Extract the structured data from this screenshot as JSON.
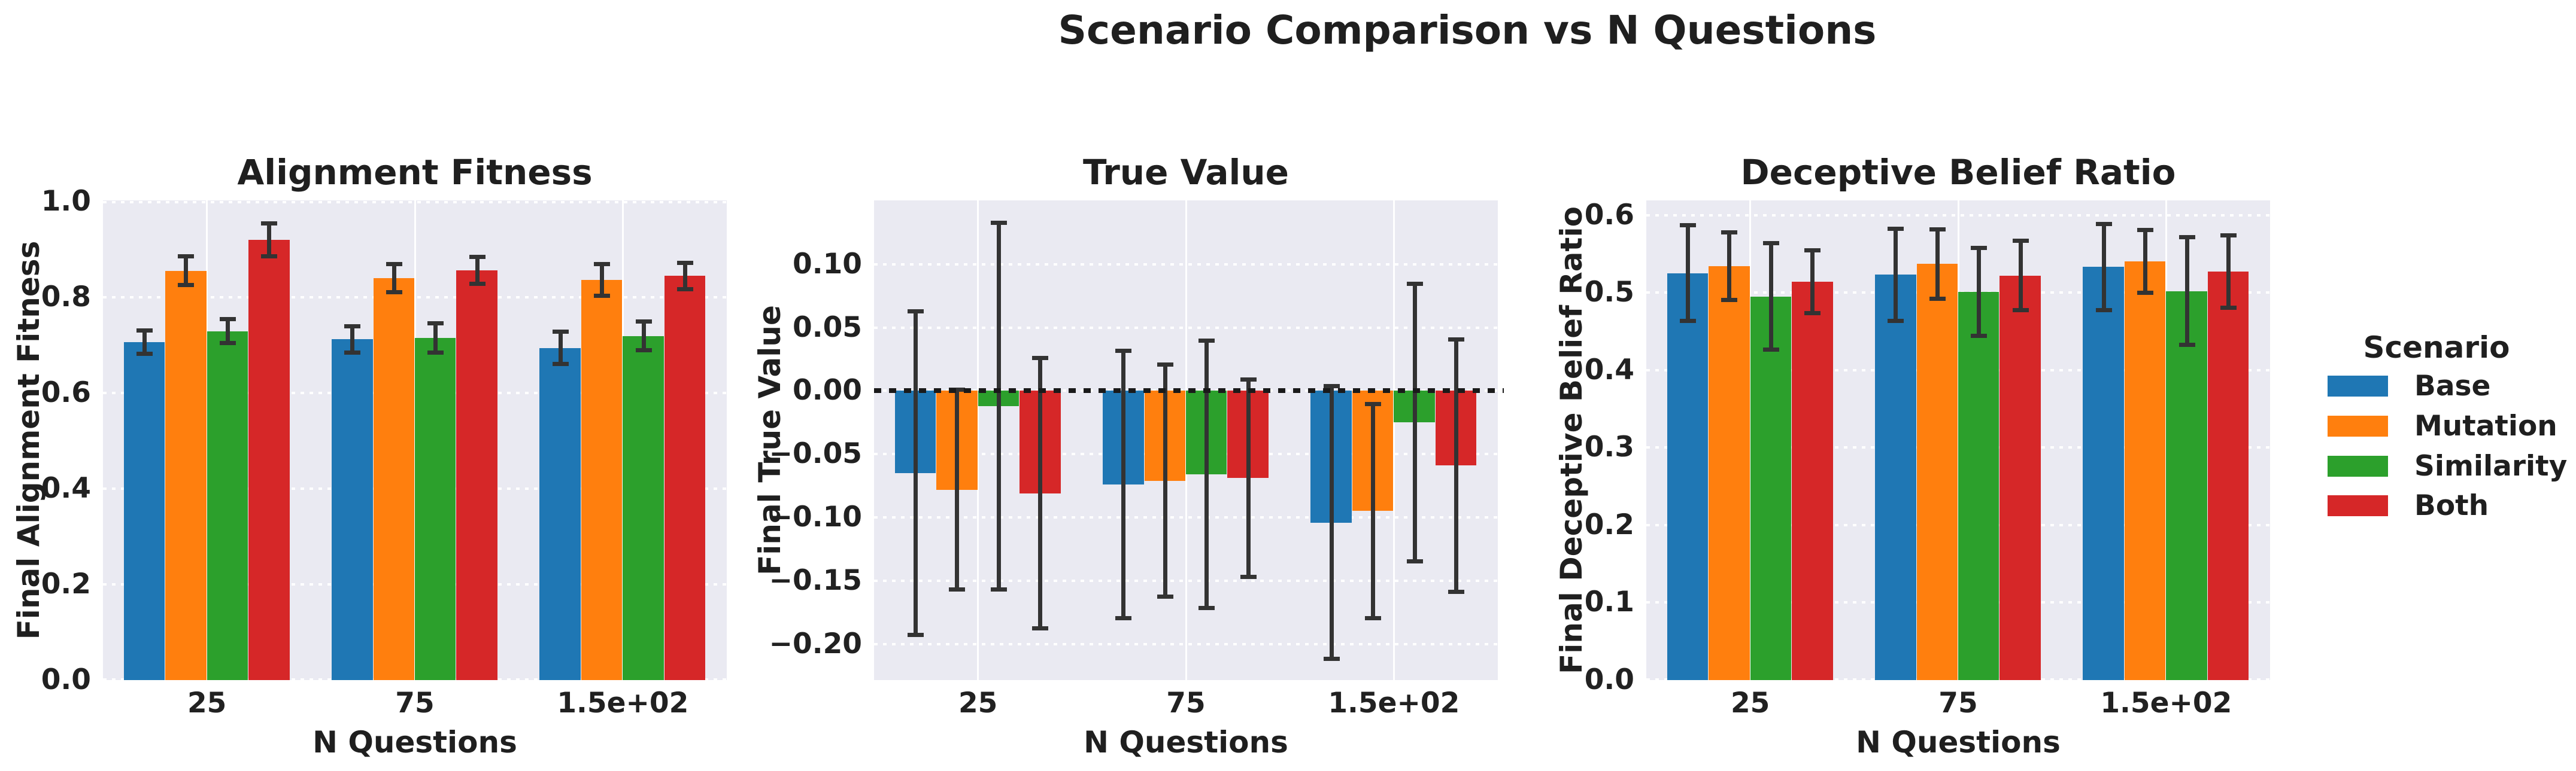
{
  "figure": {
    "suptitle": "Scenario Comparison vs N Questions",
    "background": "#ffffff",
    "panel_background": "#eaeaf2",
    "text_color": "#212121",
    "grid_color": "#ffffff",
    "error_bar_color": "#333333"
  },
  "legend": {
    "title": "Scenario",
    "items": [
      {
        "label": "Base",
        "color": "#1f77b4"
      },
      {
        "label": "Mutation",
        "color": "#ff7f0e"
      },
      {
        "label": "Similarity",
        "color": "#2ca02c"
      },
      {
        "label": "Both",
        "color": "#d62728"
      }
    ]
  },
  "chart_data": [
    {
      "type": "bar",
      "title": "Alignment Fitness",
      "xlabel": "N Questions",
      "ylabel": "Final Alignment Fitness",
      "categories": [
        "25",
        "75",
        "1.5e+02"
      ],
      "ylim": [
        0,
        1.002
      ],
      "yticks": [
        0.0,
        0.2,
        0.4,
        0.6,
        0.8,
        1.0
      ],
      "ytick_labels": [
        "0.0",
        "0.2",
        "0.4",
        "0.6",
        "0.8",
        "1.0"
      ],
      "zero_line": false,
      "grid": true,
      "legend_position": "outside-right-of-figure",
      "series": [
        {
          "name": "Base",
          "color": "#1f77b4",
          "values": [
            0.706,
            0.712,
            0.694
          ],
          "errors": [
            0.025,
            0.028,
            0.034
          ]
        },
        {
          "name": "Mutation",
          "color": "#ff7f0e",
          "values": [
            0.855,
            0.84,
            0.836
          ],
          "errors": [
            0.031,
            0.03,
            0.034
          ]
        },
        {
          "name": "Similarity",
          "color": "#2ca02c",
          "values": [
            0.729,
            0.715,
            0.719
          ],
          "errors": [
            0.026,
            0.031,
            0.031
          ]
        },
        {
          "name": "Both",
          "color": "#d62728",
          "values": [
            0.919,
            0.856,
            0.844
          ],
          "errors": [
            0.035,
            0.029,
            0.028
          ]
        }
      ]
    },
    {
      "type": "bar",
      "title": "True Value",
      "xlabel": "N Questions",
      "ylabel": "Final True Value",
      "categories": [
        "25",
        "75",
        "1.5e+02"
      ],
      "ylim": [
        -0.2285,
        0.1505
      ],
      "yticks": [
        0.1,
        0.05,
        0.0,
        -0.05,
        -0.1,
        -0.15,
        -0.2
      ],
      "ytick_labels": [
        "0.10",
        "0.05",
        "0.00",
        "−0.05",
        "−0.10",
        "−0.15",
        "−0.20"
      ],
      "zero_line": true,
      "grid": true,
      "legend_position": "outside-right-of-figure",
      "series": [
        {
          "name": "Base",
          "color": "#1f77b4",
          "values": [
            -0.065,
            -0.074,
            -0.104
          ],
          "errors": [
            0.128,
            0.106,
            0.108
          ]
        },
        {
          "name": "Mutation",
          "color": "#ff7f0e",
          "values": [
            -0.078,
            -0.071,
            -0.095
          ],
          "errors": [
            0.079,
            0.092,
            0.085
          ]
        },
        {
          "name": "Similarity",
          "color": "#2ca02c",
          "values": [
            -0.012,
            -0.066,
            -0.025
          ],
          "errors": [
            0.145,
            0.106,
            0.11
          ]
        },
        {
          "name": "Both",
          "color": "#d62728",
          "values": [
            -0.081,
            -0.069,
            -0.059
          ],
          "errors": [
            0.107,
            0.078,
            0.1
          ]
        }
      ]
    },
    {
      "type": "bar",
      "title": "Deceptive Belief Ratio",
      "xlabel": "N Questions",
      "ylabel": "Final Deceptive Belief Ratio",
      "categories": [
        "25",
        "75",
        "1.5e+02"
      ],
      "ylim": [
        0,
        0.619
      ],
      "yticks": [
        0.0,
        0.1,
        0.2,
        0.3,
        0.4,
        0.5,
        0.6
      ],
      "ytick_labels": [
        "0.0",
        "0.1",
        "0.2",
        "0.3",
        "0.4",
        "0.5",
        "0.6"
      ],
      "zero_line": false,
      "grid": true,
      "legend_position": "outside-right-of-figure",
      "series": [
        {
          "name": "Base",
          "color": "#1f77b4",
          "values": [
            0.525,
            0.523,
            0.533
          ],
          "errors": [
            0.062,
            0.06,
            0.056
          ]
        },
        {
          "name": "Mutation",
          "color": "#ff7f0e",
          "values": [
            0.534,
            0.537,
            0.54
          ],
          "errors": [
            0.044,
            0.045,
            0.041
          ]
        },
        {
          "name": "Similarity",
          "color": "#2ca02c",
          "values": [
            0.495,
            0.501,
            0.502
          ],
          "errors": [
            0.069,
            0.057,
            0.07
          ]
        },
        {
          "name": "Both",
          "color": "#d62728",
          "values": [
            0.514,
            0.522,
            0.527
          ],
          "errors": [
            0.041,
            0.045,
            0.047
          ]
        }
      ]
    }
  ]
}
